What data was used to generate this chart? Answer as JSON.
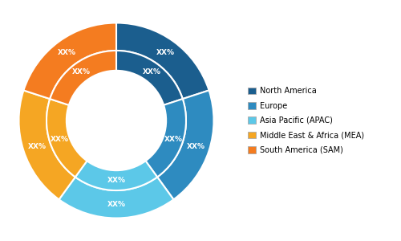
{
  "regions": [
    "North America",
    "Europe",
    "Asia Pacific (APAC)",
    "Middle East & Africa (MEA)",
    "South America (SAM)"
  ],
  "values": [
    20,
    20,
    20,
    20,
    20
  ],
  "outer_colors": [
    "#1b5e8e",
    "#2e8bc0",
    "#5cc8e8",
    "#f5a623",
    "#f47c20"
  ],
  "inner_colors": [
    "#1b5e8e",
    "#2e8bc0",
    "#5cc8e8",
    "#f5a623",
    "#f47c20"
  ],
  "legend_colors": [
    "#1b5e8e",
    "#2e8bc0",
    "#5cc8e8",
    "#f5a623",
    "#f47c20"
  ],
  "label_text": "XX%",
  "background_color": "#ffffff",
  "wedge_edge_color": "#ffffff"
}
